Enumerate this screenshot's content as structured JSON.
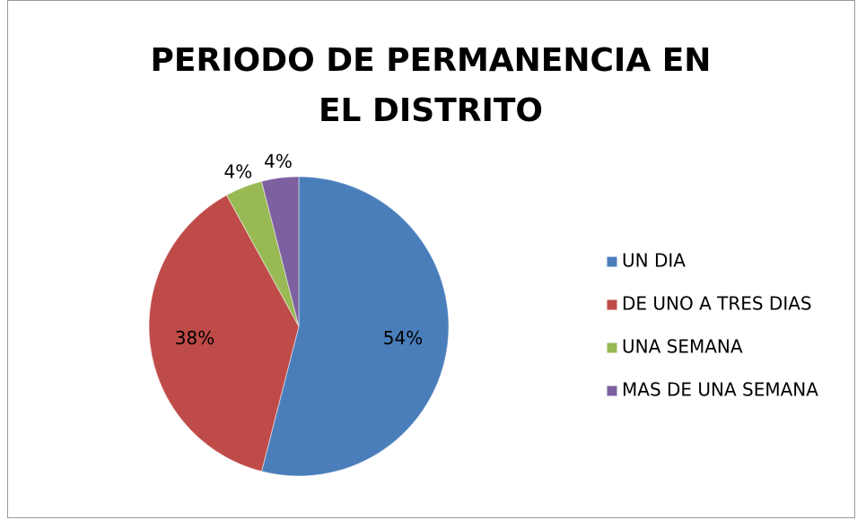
{
  "chart_data": {
    "type": "pie",
    "title": "PERIODO DE PERMANENCIA EN EL DISTRITO",
    "categories": [
      "UN DIA",
      "DE UNO A TRES DIAS",
      "UNA SEMANA",
      "MAS DE UNA SEMANA"
    ],
    "values": [
      54,
      38,
      4,
      4
    ],
    "value_labels": [
      "54%",
      "38%",
      "4%",
      "4%"
    ],
    "colors": [
      "#4a7ebb",
      "#be4b48",
      "#98b954",
      "#7d60a0"
    ],
    "legend": "right"
  }
}
